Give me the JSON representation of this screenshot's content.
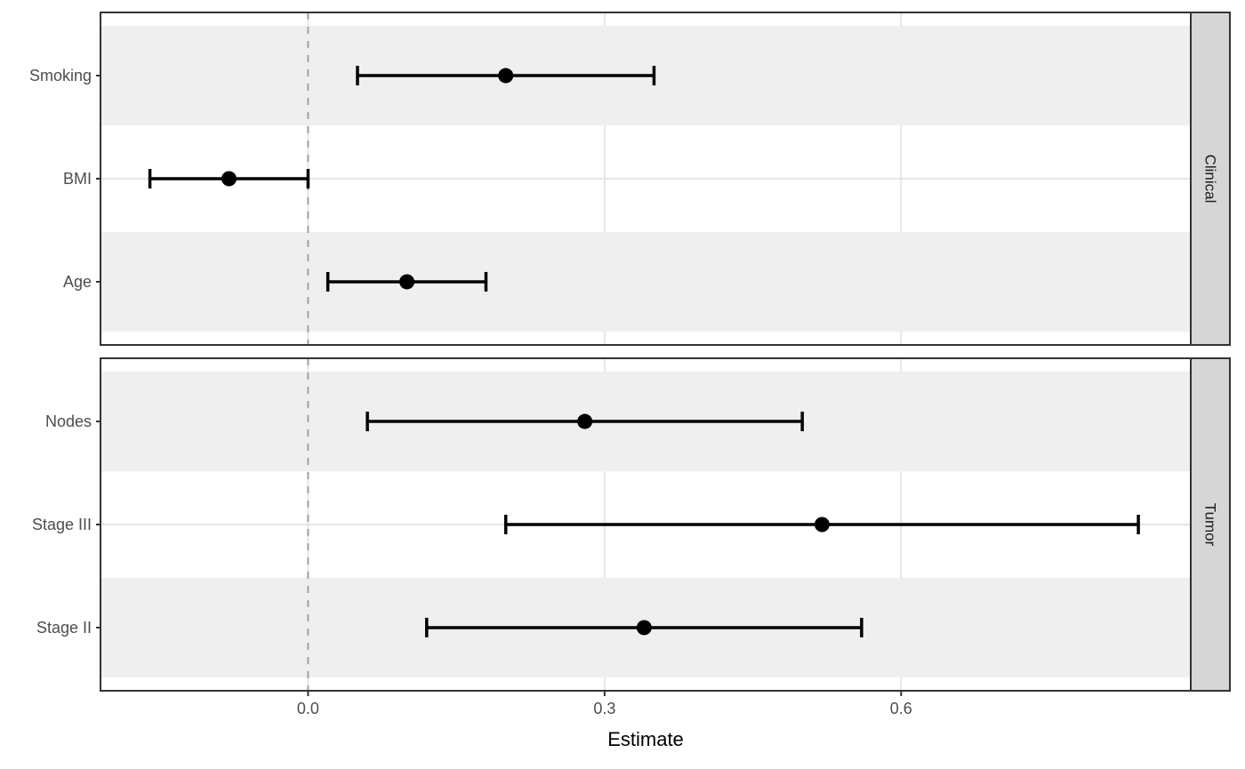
{
  "chart_data": {
    "type": "scatter",
    "variant": "forest-plot",
    "title": "",
    "xlabel": "Estimate",
    "ylabel": "",
    "xlim": [
      -0.21,
      0.893
    ],
    "x_ticks": [
      0.0,
      0.3,
      0.6
    ],
    "x_tick_labels": [
      "0.0",
      "0.3",
      "0.6"
    ],
    "grid": true,
    "legend": "none",
    "reference_line": {
      "x": 0.0,
      "style": "dashed"
    },
    "facet_strip_side": "right",
    "facets": [
      {
        "label": "Clinical",
        "rows": [
          {
            "term": "Smoking",
            "estimate": 0.2,
            "ci_low": 0.05,
            "ci_high": 0.35
          },
          {
            "term": "BMI",
            "estimate": -0.08,
            "ci_low": -0.16,
            "ci_high": 0.0
          },
          {
            "term": "Age",
            "estimate": 0.1,
            "ci_low": 0.02,
            "ci_high": 0.18
          }
        ]
      },
      {
        "label": "Tumor",
        "rows": [
          {
            "term": "Nodes",
            "estimate": 0.28,
            "ci_low": 0.06,
            "ci_high": 0.5
          },
          {
            "term": "Stage III",
            "estimate": 0.52,
            "ci_low": 0.2,
            "ci_high": 0.84
          },
          {
            "term": "Stage II",
            "estimate": 0.34,
            "ci_low": 0.12,
            "ci_high": 0.56
          }
        ]
      }
    ],
    "colors": {
      "background": "#ffffff",
      "band": "#efefef",
      "gridline": "#e6e6e6",
      "reference_line": "#a2a2a2",
      "data": "#000000",
      "panel_border": "#333333",
      "strip_fill": "#d6d6d6",
      "strip_text": "#1a1a1a",
      "axis_text": "#4d4d4d",
      "axis_title": "#000000",
      "tick_mark": "#333333"
    }
  }
}
